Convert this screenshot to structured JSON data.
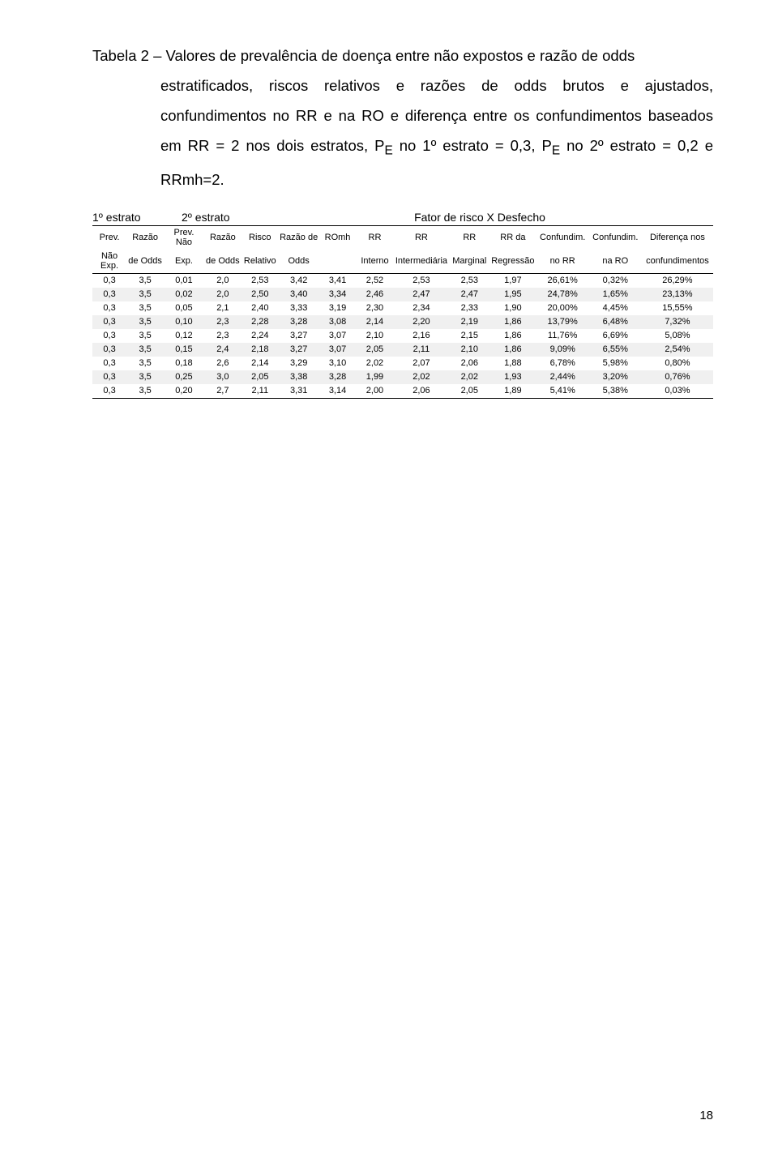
{
  "caption": {
    "label": "Tabela 2",
    "line1_tail": " – Valores de prevalência de doença entre não expostos e razão de odds",
    "rest": "estratificados, riscos relativos e razões de odds brutos e ajustados, confundimentos no RR e na RO e diferença entre os confundimentos baseados em RR = 2 nos dois estratos, P",
    "e1_sub": "E",
    "rest2": " no 1º estrato = 0,3, P",
    "e2_sub": "E",
    "rest3": " no 2º estrato = 0,2 e RRmh=2."
  },
  "stratum": {
    "s1": "1º estrato",
    "s2": "2º estrato",
    "mid": "Fator de risco X Desfecho"
  },
  "table": {
    "headers1": [
      "Prev.",
      "Razão",
      "Prev. Não",
      "Razão",
      "Risco",
      "Razão de",
      "ROmh",
      "RR",
      "RR",
      "RR",
      "RR da",
      "Confundim.",
      "Confundim.",
      "Diferença nos"
    ],
    "headers2": [
      "Não Exp.",
      "de Odds",
      "Exp.",
      "de Odds",
      "Relativo",
      "Odds",
      "",
      "Interno",
      "Intermediária",
      "Marginal",
      "Regressão",
      "no RR",
      "na RO",
      "confundimentos"
    ],
    "rows": [
      [
        "0,3",
        "3,5",
        "0,01",
        "2,0",
        "2,53",
        "3,42",
        "3,41",
        "2,52",
        "2,53",
        "2,53",
        "1,97",
        "26,61%",
        "0,32%",
        "26,29%"
      ],
      [
        "0,3",
        "3,5",
        "0,02",
        "2,0",
        "2,50",
        "3,40",
        "3,34",
        "2,46",
        "2,47",
        "2,47",
        "1,95",
        "24,78%",
        "1,65%",
        "23,13%"
      ],
      [
        "0,3",
        "3,5",
        "0,05",
        "2,1",
        "2,40",
        "3,33",
        "3,19",
        "2,30",
        "2,34",
        "2,33",
        "1,90",
        "20,00%",
        "4,45%",
        "15,55%"
      ],
      [
        "0,3",
        "3,5",
        "0,10",
        "2,3",
        "2,28",
        "3,28",
        "3,08",
        "2,14",
        "2,20",
        "2,19",
        "1,86",
        "13,79%",
        "6,48%",
        "7,32%"
      ],
      [
        "0,3",
        "3,5",
        "0,12",
        "2,3",
        "2,24",
        "3,27",
        "3,07",
        "2,10",
        "2,16",
        "2,15",
        "1,86",
        "11,76%",
        "6,69%",
        "5,08%"
      ],
      [
        "0,3",
        "3,5",
        "0,15",
        "2,4",
        "2,18",
        "3,27",
        "3,07",
        "2,05",
        "2,11",
        "2,10",
        "1,86",
        "9,09%",
        "6,55%",
        "2,54%"
      ],
      [
        "0,3",
        "3,5",
        "0,18",
        "2,6",
        "2,14",
        "3,29",
        "3,10",
        "2,02",
        "2,07",
        "2,06",
        "1,88",
        "6,78%",
        "5,98%",
        "0,80%"
      ],
      [
        "0,3",
        "3,5",
        "0,25",
        "3,0",
        "2,05",
        "3,38",
        "3,28",
        "1,99",
        "2,02",
        "2,02",
        "1,93",
        "2,44%",
        "3,20%",
        "0,76%"
      ],
      [
        "0,3",
        "3,5",
        "0,20",
        "2,7",
        "2,11",
        "3,31",
        "3,14",
        "2,00",
        "2,06",
        "2,05",
        "1,89",
        "5,41%",
        "5,38%",
        "0,03%"
      ]
    ],
    "shade_color": "#f0f0f0",
    "border_color": "#000000",
    "header_fontsize": 11,
    "body_fontsize": 11
  },
  "page_number": "18"
}
